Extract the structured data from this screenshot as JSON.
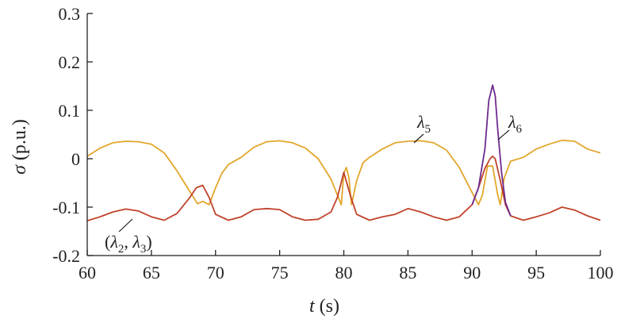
{
  "chart_data": {
    "type": "line",
    "xlabel_var": "t",
    "xlabel_unit": " (s)",
    "ylabel_var": "σ",
    "ylabel_unit": " (p.u.)",
    "xlim": [
      60,
      100
    ],
    "ylim": [
      -0.2,
      0.3
    ],
    "xticks": [
      60,
      65,
      70,
      75,
      80,
      85,
      90,
      95,
      100
    ],
    "xtick_labels": [
      "60",
      "65",
      "70",
      "75",
      "80",
      "85",
      "90",
      "95",
      "100"
    ],
    "yticks": [
      -0.2,
      -0.1,
      0,
      0.1,
      0.2,
      0.3
    ],
    "ytick_labels": [
      "-0.2",
      "-0.1",
      "0",
      "0.1",
      "0.2",
      "0.3"
    ],
    "grid": false,
    "series": [
      {
        "color": "#e2a62b",
        "x": [
          60,
          61,
          62,
          63,
          64,
          65,
          66,
          67,
          68,
          68.6,
          69,
          69.5,
          70,
          70.5,
          71,
          72,
          73,
          74,
          75,
          76,
          77,
          78,
          79,
          79.5,
          79.8,
          80,
          80.2,
          80.4,
          80.6,
          81,
          81.5,
          82,
          83,
          84,
          85,
          86,
          87,
          88,
          89,
          90,
          90.5,
          90.8,
          91.2,
          91.6,
          92,
          92.2,
          92.5,
          93,
          94,
          95,
          96,
          97,
          98,
          99,
          100
        ],
        "y": [
          0.005,
          0.022,
          0.033,
          0.036,
          0.035,
          0.03,
          0.012,
          -0.025,
          -0.068,
          -0.093,
          -0.088,
          -0.095,
          -0.06,
          -0.03,
          -0.012,
          0.003,
          0.024,
          0.035,
          0.037,
          0.033,
          0.022,
          0.0,
          -0.042,
          -0.075,
          -0.095,
          -0.03,
          -0.018,
          -0.04,
          -0.095,
          -0.045,
          -0.008,
          0.003,
          0.02,
          0.033,
          0.036,
          0.037,
          0.033,
          0.018,
          -0.018,
          -0.07,
          -0.095,
          -0.075,
          -0.015,
          -0.015,
          -0.075,
          -0.095,
          -0.04,
          -0.005,
          0.003,
          0.02,
          0.03,
          0.038,
          0.036,
          0.02,
          0.012
        ]
      },
      {
        "color": "#c0432b",
        "x": [
          60,
          61,
          62,
          63,
          64,
          65,
          66,
          67,
          68,
          68.5,
          69,
          69.5,
          70,
          71,
          72,
          73,
          74,
          75,
          76,
          77,
          78,
          79,
          79.5,
          80,
          80.5,
          81,
          82,
          83,
          84,
          85,
          86,
          87,
          88,
          89,
          90,
          90.5,
          91,
          91.4,
          91.6,
          91.8,
          92.2,
          92.6,
          93,
          94,
          95,
          96,
          97,
          98,
          99,
          100
        ],
        "y": [
          -0.128,
          -0.12,
          -0.11,
          -0.104,
          -0.108,
          -0.12,
          -0.127,
          -0.113,
          -0.08,
          -0.06,
          -0.055,
          -0.08,
          -0.115,
          -0.127,
          -0.12,
          -0.105,
          -0.103,
          -0.105,
          -0.12,
          -0.127,
          -0.125,
          -0.11,
          -0.08,
          -0.028,
          -0.075,
          -0.115,
          -0.127,
          -0.12,
          -0.115,
          -0.103,
          -0.11,
          -0.12,
          -0.127,
          -0.12,
          -0.095,
          -0.06,
          -0.02,
          0.0,
          0.005,
          0.0,
          -0.045,
          -0.095,
          -0.118,
          -0.127,
          -0.12,
          -0.112,
          -0.1,
          -0.106,
          -0.118,
          -0.127
        ]
      },
      {
        "color": "#6e2a8e",
        "x": [
          90,
          90.5,
          91,
          91.3,
          91.6,
          91.8,
          92,
          92.3,
          92.6,
          93
        ],
        "y": [
          -0.095,
          -0.06,
          0.02,
          0.12,
          0.152,
          0.13,
          0.06,
          -0.03,
          -0.09,
          -0.118
        ]
      }
    ],
    "annotations": [
      {
        "var": "λ",
        "sub": "5"
      },
      {
        "var": "λ",
        "sub": "6"
      },
      {
        "open": "(",
        "var1": "λ",
        "sub1": "2",
        "sep": ", ",
        "var2": "λ",
        "sub2": "3",
        "close": ")"
      }
    ]
  }
}
